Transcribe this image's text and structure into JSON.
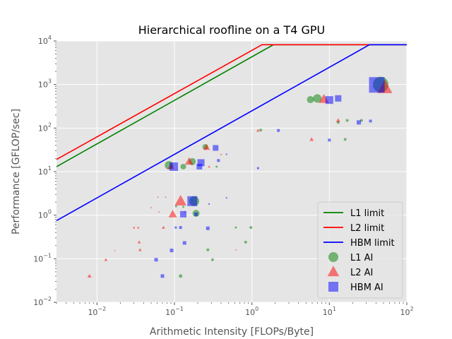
{
  "chart_data": {
    "type": "scatter",
    "title": "Hierarchical roofline on a T4 GPU",
    "xlabel": "Arithmetic Intensity [FLOPs/Byte]",
    "ylabel": "Performance [GFLOP/sec]",
    "xscale": "log",
    "yscale": "log",
    "xlim": [
      0.003,
      100
    ],
    "ylim": [
      0.01,
      10000
    ],
    "x_ticks": [
      {
        "value": 0.01,
        "base": "10",
        "exp": "−2"
      },
      {
        "value": 0.1,
        "base": "10",
        "exp": "−1"
      },
      {
        "value": 1,
        "base": "10",
        "exp": "0"
      },
      {
        "value": 10,
        "base": "10",
        "exp": "1"
      },
      {
        "value": 100,
        "base": "10",
        "exp": "2"
      }
    ],
    "y_ticks": [
      {
        "value": 0.01,
        "base": "10",
        "exp": "−2"
      },
      {
        "value": 0.1,
        "base": "10",
        "exp": "−1"
      },
      {
        "value": 1,
        "base": "10",
        "exp": "0"
      },
      {
        "value": 10,
        "base": "10",
        "exp": "1"
      },
      {
        "value": 100,
        "base": "10",
        "exp": "2"
      },
      {
        "value": 1000,
        "base": "10",
        "exp": "3"
      },
      {
        "value": 10000,
        "base": "10",
        "exp": "4"
      }
    ],
    "grid": true,
    "legend_position": "lower-right",
    "rooflines": [
      {
        "name": "L1 limit",
        "color": "#008000",
        "points": [
          [
            0.003,
            13
          ],
          [
            1.9,
            8200
          ],
          [
            100,
            8200
          ]
        ]
      },
      {
        "name": "L2 limit",
        "color": "#ff0000",
        "points": [
          [
            0.003,
            19
          ],
          [
            1.35,
            8200
          ],
          [
            100,
            8200
          ]
        ]
      },
      {
        "name": "HBM limit",
        "color": "#0000ff",
        "points": [
          [
            0.003,
            0.75
          ],
          [
            33,
            8200
          ],
          [
            100,
            8200
          ]
        ]
      }
    ],
    "series": [
      {
        "name": "L1 AI",
        "marker": "circle",
        "color": "#008000",
        "points": [
          {
            "x": 46,
            "y": 1000,
            "s": 11
          },
          {
            "x": 7,
            "y": 480,
            "s": 6
          },
          {
            "x": 5.7,
            "y": 450,
            "s": 5
          },
          {
            "x": 0.18,
            "y": 2.1,
            "s": 7
          },
          {
            "x": 0.19,
            "y": 1.1,
            "s": 5
          },
          {
            "x": 0.085,
            "y": 14,
            "s": 6
          },
          {
            "x": 0.17,
            "y": 17,
            "s": 5
          },
          {
            "x": 0.25,
            "y": 37,
            "s": 4
          },
          {
            "x": 0.13,
            "y": 13,
            "s": 4
          },
          {
            "x": 13,
            "y": 135,
            "s": 2
          },
          {
            "x": 17,
            "y": 150,
            "s": 2
          },
          {
            "x": 26,
            "y": 150,
            "s": 2
          },
          {
            "x": 16,
            "y": 55,
            "s": 2
          },
          {
            "x": 1.3,
            "y": 90,
            "s": 2
          },
          {
            "x": 0.35,
            "y": 13,
            "s": 1.5
          },
          {
            "x": 0.62,
            "y": 0.52,
            "s": 1.5
          },
          {
            "x": 0.97,
            "y": 0.52,
            "s": 2
          },
          {
            "x": 0.83,
            "y": 0.24,
            "s": 2
          },
          {
            "x": 0.27,
            "y": 0.16,
            "s": 2
          },
          {
            "x": 0.31,
            "y": 0.095,
            "s": 2
          },
          {
            "x": 0.12,
            "y": 0.04,
            "s": 2.5
          },
          {
            "x": 0.105,
            "y": 1.6,
            "s": 1.5
          },
          {
            "x": 0.13,
            "y": 1.55,
            "s": 1.5
          }
        ]
      },
      {
        "name": "L2 AI",
        "marker": "triangle",
        "color": "#ff0000",
        "points": [
          {
            "x": 52,
            "y": 850,
            "s": 9
          },
          {
            "x": 8.5,
            "y": 460,
            "s": 6
          },
          {
            "x": 0.12,
            "y": 2.1,
            "s": 7
          },
          {
            "x": 0.095,
            "y": 1.05,
            "s": 5
          },
          {
            "x": 0.155,
            "y": 17,
            "s": 5
          },
          {
            "x": 0.26,
            "y": 36,
            "s": 4
          },
          {
            "x": 0.09,
            "y": 13,
            "s": 4
          },
          {
            "x": 13,
            "y": 150,
            "s": 2.5
          },
          {
            "x": 5.9,
            "y": 55,
            "s": 2.5
          },
          {
            "x": 1.2,
            "y": 88,
            "s": 2
          },
          {
            "x": 0.28,
            "y": 13,
            "s": 1.5
          },
          {
            "x": 0.4,
            "y": 25,
            "s": 1.2
          },
          {
            "x": 0.072,
            "y": 0.52,
            "s": 2
          },
          {
            "x": 0.035,
            "y": 0.24,
            "s": 2
          },
          {
            "x": 0.036,
            "y": 0.16,
            "s": 2
          },
          {
            "x": 0.03,
            "y": 0.52,
            "s": 1.5
          },
          {
            "x": 0.034,
            "y": 0.52,
            "s": 1.5
          },
          {
            "x": 0.013,
            "y": 0.095,
            "s": 2
          },
          {
            "x": 0.008,
            "y": 0.04,
            "s": 2.5
          },
          {
            "x": 0.017,
            "y": 0.155,
            "s": 1
          },
          {
            "x": 0.05,
            "y": 1.5,
            "s": 1
          },
          {
            "x": 0.061,
            "y": 2.6,
            "s": 1
          },
          {
            "x": 0.077,
            "y": 2.6,
            "s": 1
          },
          {
            "x": 0.063,
            "y": 1.2,
            "s": 1
          },
          {
            "x": 0.135,
            "y": 1.2,
            "s": 1
          },
          {
            "x": 0.62,
            "y": 0.16,
            "s": 1
          }
        ]
      },
      {
        "name": "HBM AI",
        "marker": "square",
        "color": "#0000ff",
        "points": [
          {
            "x": 41,
            "y": 980,
            "s": 11
          },
          {
            "x": 10,
            "y": 440,
            "s": 5.5
          },
          {
            "x": 13,
            "y": 480,
            "s": 4.5
          },
          {
            "x": 0.17,
            "y": 2.1,
            "s": 7
          },
          {
            "x": 0.13,
            "y": 1.05,
            "s": 4.5
          },
          {
            "x": 0.098,
            "y": 13,
            "s": 6
          },
          {
            "x": 0.22,
            "y": 16,
            "s": 5
          },
          {
            "x": 0.34,
            "y": 35,
            "s": 4
          },
          {
            "x": 0.21,
            "y": 13,
            "s": 4
          },
          {
            "x": 24,
            "y": 135,
            "s": 3
          },
          {
            "x": 34,
            "y": 145,
            "s": 2
          },
          {
            "x": 10,
            "y": 53,
            "s": 2
          },
          {
            "x": 2.2,
            "y": 88,
            "s": 2
          },
          {
            "x": 0.19,
            "y": 1.05,
            "s": 2.5
          },
          {
            "x": 0.27,
            "y": 0.5,
            "s": 2.5
          },
          {
            "x": 0.092,
            "y": 0.155,
            "s": 2.5
          },
          {
            "x": 0.135,
            "y": 0.23,
            "s": 2.5
          },
          {
            "x": 0.058,
            "y": 0.095,
            "s": 2.5
          },
          {
            "x": 0.07,
            "y": 0.04,
            "s": 2.5
          },
          {
            "x": 0.12,
            "y": 0.52,
            "s": 2
          },
          {
            "x": 0.104,
            "y": 0.52,
            "s": 1.5
          },
          {
            "x": 0.37,
            "y": 18,
            "s": 2
          },
          {
            "x": 1.2,
            "y": 12,
            "s": 1.5
          },
          {
            "x": 0.47,
            "y": 25,
            "s": 1
          },
          {
            "x": 0.47,
            "y": 2.5,
            "s": 1
          },
          {
            "x": 0.28,
            "y": 1.8,
            "s": 1
          }
        ]
      }
    ]
  }
}
